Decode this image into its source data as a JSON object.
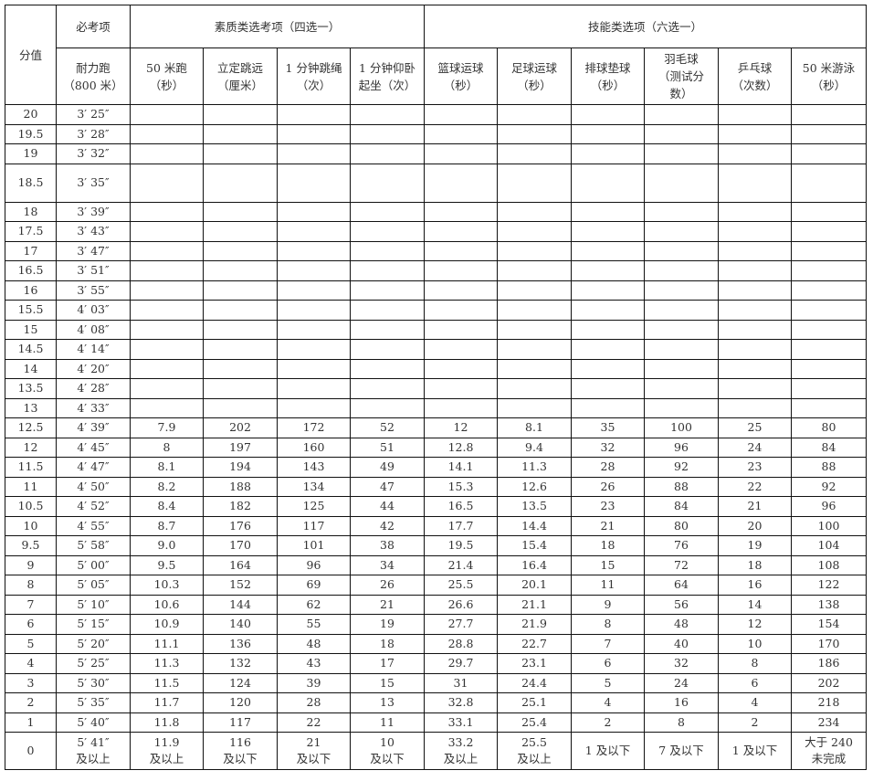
{
  "header": {
    "score": "分值",
    "required_group": "必考项",
    "quality_group": "素质类选考项（四选一）",
    "skill_group": "技能类选项（六选一）",
    "required_cols": [
      "耐力跑\n（800 米）"
    ],
    "quality_cols": [
      "50 米跑\n（秒）",
      "立定跳远\n（厘米）",
      "1 分钟跳绳\n（次）",
      "1 分钟仰卧\n起坐（次）"
    ],
    "skill_cols": [
      "篮球运球\n（秒）",
      "足球运球\n（秒）",
      "排球垫球\n（秒）",
      "羽毛球\n（测试分\n数）",
      "乒乓球\n（次数）",
      "50 米游泳\n（秒）"
    ]
  },
  "rows": [
    [
      "20",
      "3′ 25″",
      "",
      "",
      "",
      "",
      "",
      "",
      "",
      "",
      "",
      ""
    ],
    [
      "19.5",
      "3′ 28″",
      "",
      "",
      "",
      "",
      "",
      "",
      "",
      "",
      "",
      ""
    ],
    [
      "19",
      "3′ 32″",
      "",
      "",
      "",
      "",
      "",
      "",
      "",
      "",
      "",
      ""
    ],
    [
      "18.5",
      "3′ 35″",
      "",
      "",
      "",
      "",
      "",
      "",
      "",
      "",
      "",
      ""
    ],
    [
      "18",
      "3′ 39″",
      "",
      "",
      "",
      "",
      "",
      "",
      "",
      "",
      "",
      ""
    ],
    [
      "17.5",
      "3′ 43″",
      "",
      "",
      "",
      "",
      "",
      "",
      "",
      "",
      "",
      ""
    ],
    [
      "17",
      "3′ 47″",
      "",
      "",
      "",
      "",
      "",
      "",
      "",
      "",
      "",
      ""
    ],
    [
      "16.5",
      "3′ 51″",
      "",
      "",
      "",
      "",
      "",
      "",
      "",
      "",
      "",
      ""
    ],
    [
      "16",
      "3′ 55″",
      "",
      "",
      "",
      "",
      "",
      "",
      "",
      "",
      "",
      ""
    ],
    [
      "15.5",
      "4′ 03″",
      "",
      "",
      "",
      "",
      "",
      "",
      "",
      "",
      "",
      ""
    ],
    [
      "15",
      "4′ 08″",
      "",
      "",
      "",
      "",
      "",
      "",
      "",
      "",
      "",
      ""
    ],
    [
      "14.5",
      "4′ 14″",
      "",
      "",
      "",
      "",
      "",
      "",
      "",
      "",
      "",
      ""
    ],
    [
      "14",
      "4′ 20″",
      "",
      "",
      "",
      "",
      "",
      "",
      "",
      "",
      "",
      ""
    ],
    [
      "13.5",
      "4′ 28″",
      "",
      "",
      "",
      "",
      "",
      "",
      "",
      "",
      "",
      ""
    ],
    [
      "13",
      "4′ 33″",
      "",
      "",
      "",
      "",
      "",
      "",
      "",
      "",
      "",
      ""
    ],
    [
      "12.5",
      "4′ 39″",
      "7.9",
      "202",
      "172",
      "52",
      "12",
      "8.1",
      "35",
      "100",
      "25",
      "80"
    ],
    [
      "12",
      "4′ 45″",
      "8",
      "197",
      "160",
      "51",
      "12.8",
      "9.4",
      "32",
      "96",
      "24",
      "84"
    ],
    [
      "11.5",
      "4′ 47″",
      "8.1",
      "194",
      "143",
      "49",
      "14.1",
      "11.3",
      "28",
      "92",
      "23",
      "88"
    ],
    [
      "11",
      "4′ 50″",
      "8.2",
      "188",
      "134",
      "47",
      "15.3",
      "12.6",
      "26",
      "88",
      "22",
      "92"
    ],
    [
      "10.5",
      "4′ 52″",
      "8.4",
      "182",
      "125",
      "44",
      "16.5",
      "13.5",
      "23",
      "84",
      "21",
      "96"
    ],
    [
      "10",
      "4′ 55″",
      "8.7",
      "176",
      "117",
      "42",
      "17.7",
      "14.4",
      "21",
      "80",
      "20",
      "100"
    ],
    [
      "9.5",
      "5′ 58″",
      "9.0",
      "170",
      "101",
      "38",
      "19.5",
      "15.4",
      "18",
      "76",
      "19",
      "104"
    ],
    [
      "9",
      "5′ 00″",
      "9.5",
      "164",
      "96",
      "34",
      "21.4",
      "16.4",
      "15",
      "72",
      "18",
      "108"
    ],
    [
      "8",
      "5′ 05″",
      "10.3",
      "152",
      "69",
      "26",
      "25.5",
      "20.1",
      "11",
      "64",
      "16",
      "122"
    ],
    [
      "7",
      "5′ 10″",
      "10.6",
      "144",
      "62",
      "21",
      "26.6",
      "21.1",
      "9",
      "56",
      "14",
      "138"
    ],
    [
      "6",
      "5′ 15″",
      "10.9",
      "140",
      "55",
      "19",
      "27.7",
      "21.9",
      "8",
      "48",
      "12",
      "154"
    ],
    [
      "5",
      "5′ 20″",
      "11.1",
      "136",
      "48",
      "18",
      "28.8",
      "22.7",
      "7",
      "40",
      "10",
      "170"
    ],
    [
      "4",
      "5′ 25″",
      "11.3",
      "132",
      "43",
      "17",
      "29.7",
      "23.1",
      "6",
      "32",
      "8",
      "186"
    ],
    [
      "3",
      "5′ 30″",
      "11.5",
      "124",
      "39",
      "15",
      "31",
      "24.4",
      "5",
      "24",
      "6",
      "202"
    ],
    [
      "2",
      "5′ 35″",
      "11.7",
      "120",
      "28",
      "13",
      "32.8",
      "25.1",
      "4",
      "16",
      "4",
      "218"
    ],
    [
      "1",
      "5′ 40″",
      "11.8",
      "117",
      "22",
      "11",
      "33.1",
      "25.4",
      "2",
      "8",
      "2",
      "234"
    ],
    [
      "0",
      "5′ 41″\n及以上",
      "11.9\n及以上",
      "116\n及以下",
      "21\n及以下",
      "10\n及以下",
      "33.2\n及以上",
      "25.5\n及以上",
      "1 及以下",
      "7 及以下",
      "1 及以下",
      "大于 240\n未完成"
    ]
  ]
}
